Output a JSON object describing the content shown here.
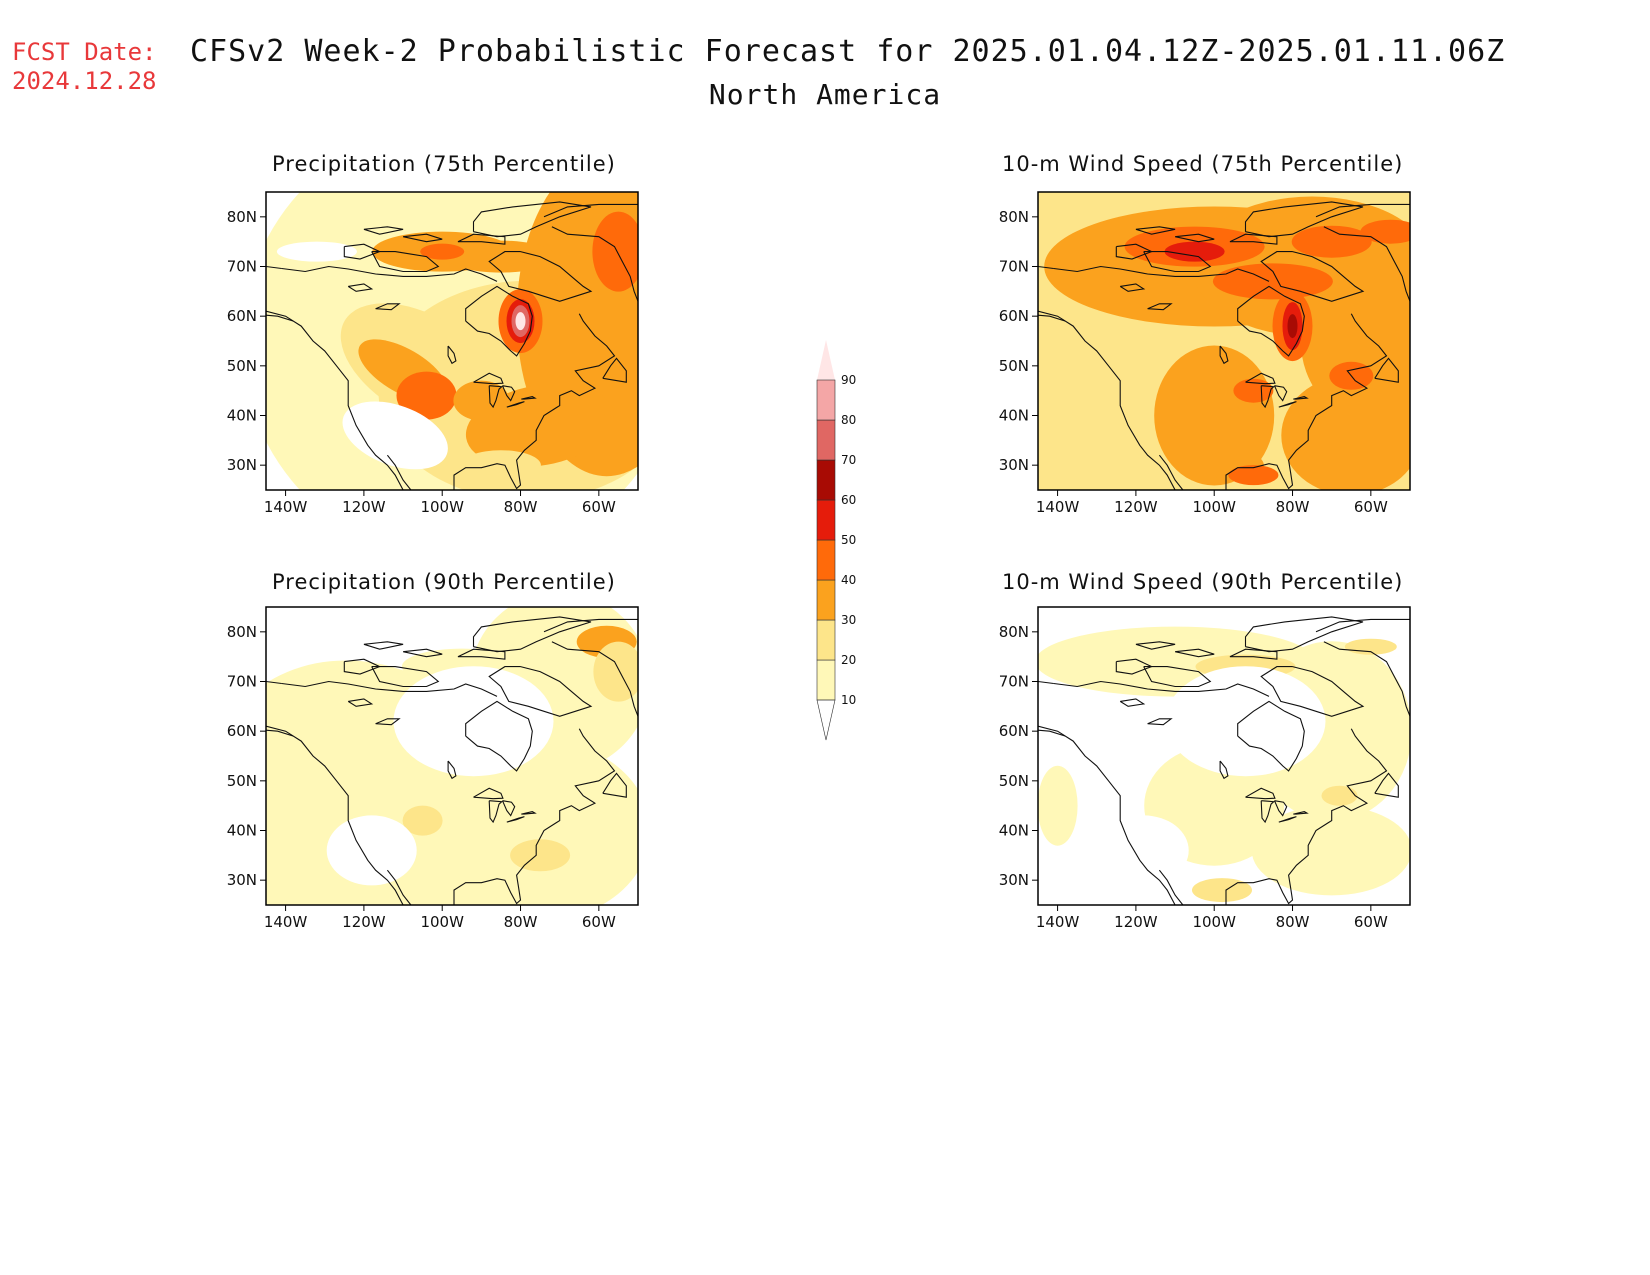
{
  "header": {
    "fcst_label": "FCST Date:",
    "fcst_date": "2024.12.28",
    "title": "CFSv2 Week-2 Probabilistic Forecast for 2025.01.04.12Z-2025.01.11.06Z",
    "region": "North America"
  },
  "panels": [
    {
      "id": "precip75",
      "title": "Precipitation (75th Percentile)"
    },
    {
      "id": "wind75",
      "title": "10-m Wind Speed (75th Percentile)"
    },
    {
      "id": "precip90",
      "title": "Precipitation (90th Percentile)"
    },
    {
      "id": "wind90",
      "title": "10-m Wind Speed (90th Percentile)"
    }
  ],
  "map_axes": {
    "lat_labels": [
      "80N",
      "70N",
      "60N",
      "50N",
      "40N",
      "30N"
    ],
    "lon_labels": [
      "140W",
      "120W",
      "100W",
      "80W",
      "60W"
    ]
  },
  "colorbar": {
    "levels": [
      "10",
      "20",
      "30",
      "40",
      "50",
      "60",
      "70",
      "80",
      "90"
    ],
    "colors": [
      "#fff8b8",
      "#fde58a",
      "#fba21e",
      "#ff6a0a",
      "#e51c0b",
      "#a80b04",
      "#e06763",
      "#f4a6a6",
      "#ffe6e6"
    ]
  }
}
